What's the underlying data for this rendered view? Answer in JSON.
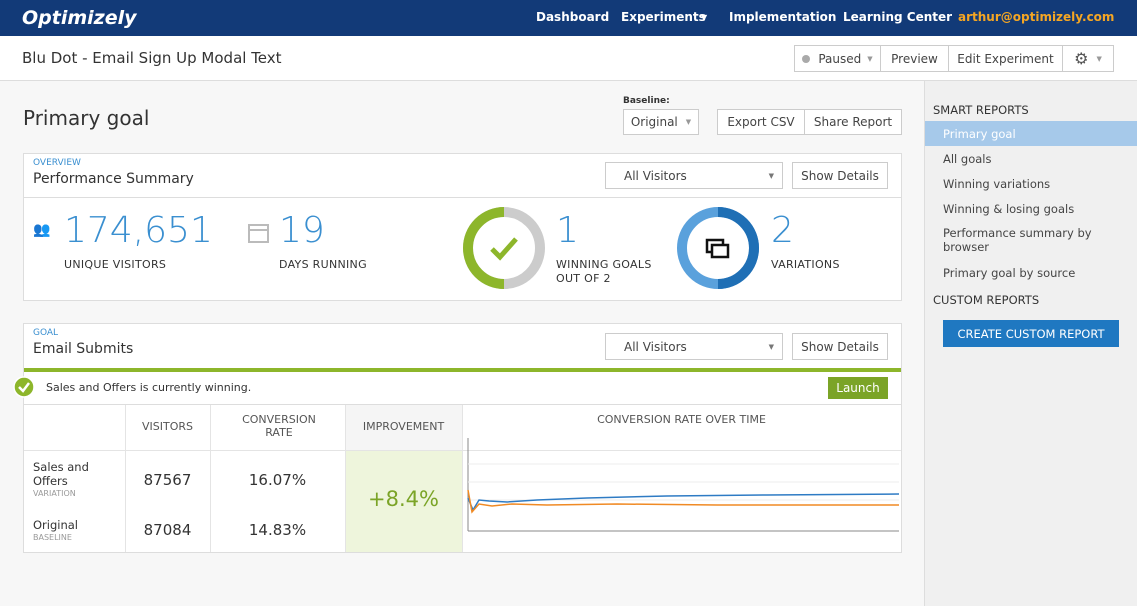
{
  "nav": {
    "logo": "Optimizely",
    "links": [
      "Dashboard",
      "Experiments",
      "Implementation",
      "Learning Center"
    ],
    "user": "arthur@optimizely.com"
  },
  "header": {
    "title": "Blu Dot - Email Sign Up Modal Text",
    "status": "Paused",
    "buttons": [
      "Preview",
      "Edit Experiment"
    ]
  },
  "report": {
    "title": "Primary goal",
    "baseline_label": "Baseline:",
    "baseline": "Original",
    "buttons": [
      "Export CSV",
      "Share Report"
    ]
  },
  "overview": {
    "eyebrow": "OVERVIEW",
    "title": "Performance Summary",
    "filter": "All Visitors",
    "details": "Show Details",
    "stats": [
      {
        "value": "174,651",
        "label": "UNIQUE VISITORS"
      },
      {
        "value": "19",
        "label": "DAYS RUNNING"
      },
      {
        "value": "1",
        "label": "WINNING GOALS OUT OF 2"
      },
      {
        "value": "2",
        "label": "VARIATIONS"
      }
    ]
  },
  "goal": {
    "eyebrow": "GOAL",
    "title": "Email Submits",
    "filter": "All Visitors",
    "details": "Show Details",
    "banner": "Sales and Offers is currently winning.",
    "launch": "Launch",
    "table": {
      "headers": [
        "VISITORS",
        "CONVERSION RATE",
        "IMPROVEMENT",
        "CONVERSION RATE OVER TIME"
      ],
      "rows": [
        {
          "name": "Sales and Offers",
          "role": "VARIATION",
          "visitors": "87567",
          "rate": "16.07%",
          "improvement": "+8.4%"
        },
        {
          "name": "Original",
          "role": "BASELINE",
          "visitors": "87084",
          "rate": "14.83%"
        }
      ]
    }
  },
  "sidebar": {
    "smart_title": "SMART REPORTS",
    "smart": [
      "Primary goal",
      "All goals",
      "Winning variations",
      "Winning & losing goals",
      "Performance summary by browser",
      "Primary goal by source"
    ],
    "custom_title": "CUSTOM REPORTS",
    "create": "CREATE CUSTOM REPORT"
  }
}
